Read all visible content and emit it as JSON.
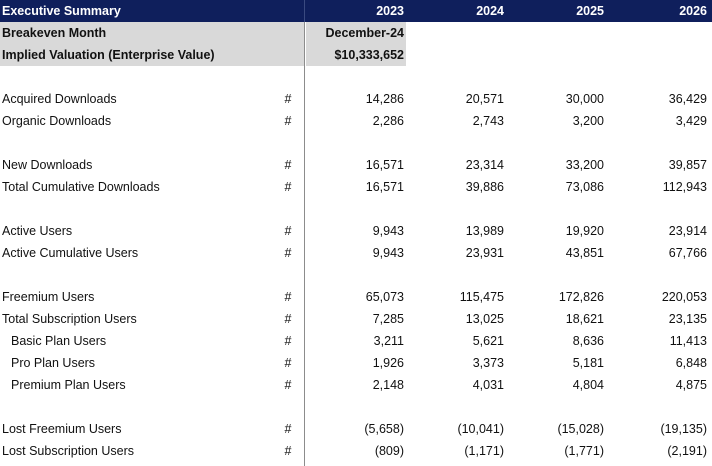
{
  "header": {
    "title": "Executive Summary",
    "years": [
      "2023",
      "2024",
      "2025",
      "2026"
    ]
  },
  "summary": {
    "breakeven_label": "Breakeven Month",
    "breakeven_value": "December-24",
    "valuation_label": "Implied Valuation (Enterprise Value)",
    "valuation_value": "$10,333,652"
  },
  "colors": {
    "header_bg": "#0f1f5c",
    "header_text": "#ffffff",
    "summary_bg": "#d9d9d9"
  },
  "rows": [
    {
      "label": "Acquired Downloads",
      "unit": "#",
      "values": [
        "14,286",
        "20,571",
        "30,000",
        "36,429"
      ]
    },
    {
      "label": "Organic Downloads",
      "unit": "#",
      "values": [
        "2,286",
        "2,743",
        "3,200",
        "3,429"
      ]
    },
    {
      "label": "New Downloads",
      "unit": "#",
      "values": [
        "16,571",
        "23,314",
        "33,200",
        "39,857"
      ]
    },
    {
      "label": "Total Cumulative Downloads",
      "unit": "#",
      "values": [
        "16,571",
        "39,886",
        "73,086",
        "112,943"
      ]
    },
    {
      "label": "Active Users",
      "unit": "#",
      "values": [
        "9,943",
        "13,989",
        "19,920",
        "23,914"
      ]
    },
    {
      "label": "Active Cumulative Users",
      "unit": "#",
      "values": [
        "9,943",
        "23,931",
        "43,851",
        "67,766"
      ]
    },
    {
      "label": "Freemium Users",
      "unit": "#",
      "values": [
        "65,073",
        "115,475",
        "172,826",
        "220,053"
      ]
    },
    {
      "label": "Total Subscription Users",
      "unit": "#",
      "values": [
        "7,285",
        "13,025",
        "18,621",
        "23,135"
      ]
    },
    {
      "label": "Basic Plan Users",
      "unit": "#",
      "values": [
        "3,211",
        "5,621",
        "8,636",
        "11,413"
      ]
    },
    {
      "label": "Pro Plan Users",
      "unit": "#",
      "values": [
        "1,926",
        "3,373",
        "5,181",
        "6,848"
      ]
    },
    {
      "label": "Premium Plan Users",
      "unit": "#",
      "values": [
        "2,148",
        "4,031",
        "4,804",
        "4,875"
      ]
    },
    {
      "label": "Lost Freemium Users",
      "unit": "#",
      "values": [
        "(5,658)",
        "(10,041)",
        "(15,028)",
        "(19,135)"
      ]
    },
    {
      "label": "Lost Subscription Users",
      "unit": "#",
      "values": [
        "(809)",
        "(1,171)",
        "(1,771)",
        "(2,191)"
      ]
    }
  ]
}
